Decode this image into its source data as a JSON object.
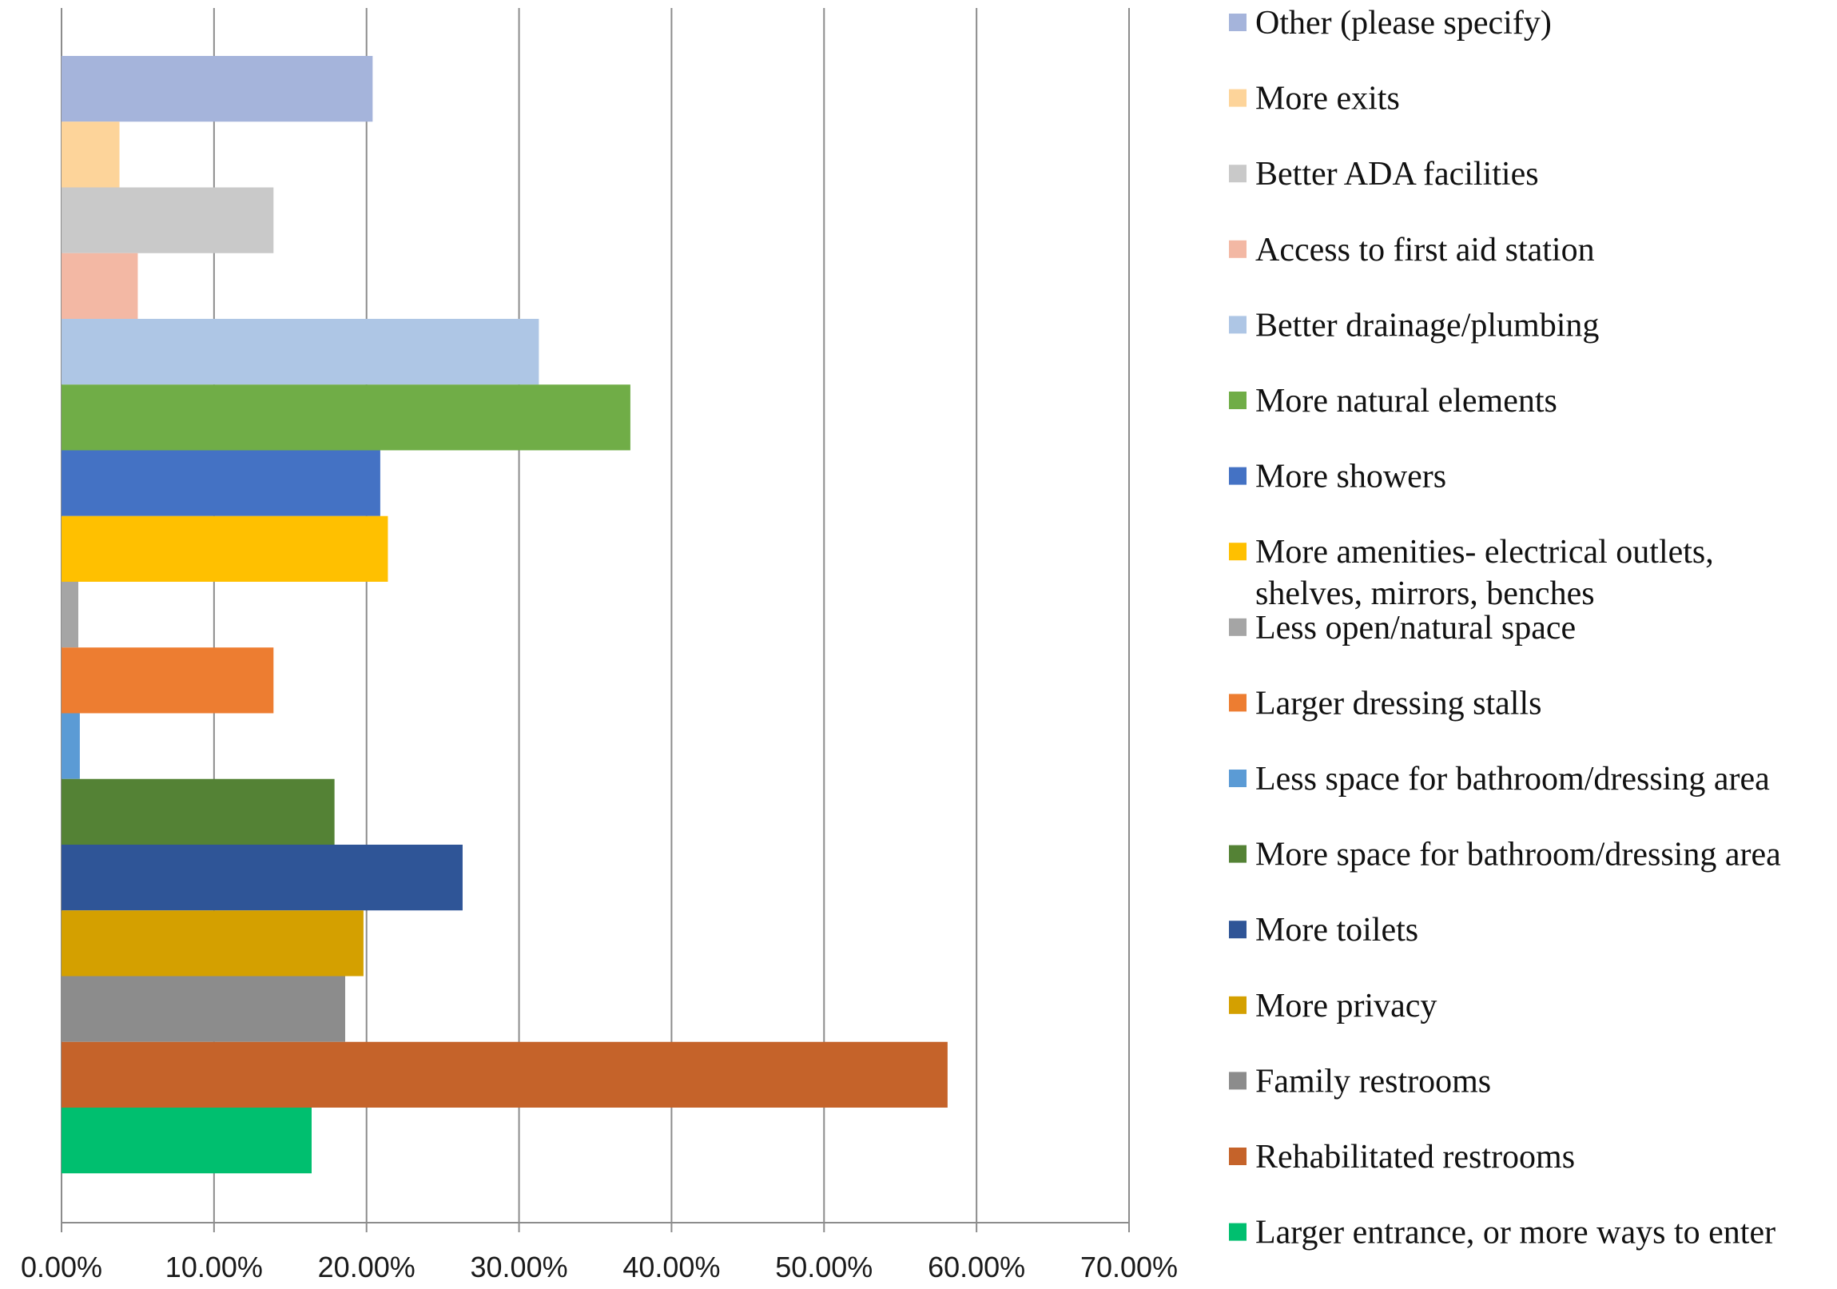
{
  "chart_data": {
    "type": "bar",
    "orientation": "horizontal",
    "title": "",
    "xlabel": "",
    "ylabel": "",
    "xlim": [
      0,
      70
    ],
    "x_ticks": [
      "0.00%",
      "10.00%",
      "20.00%",
      "30.00%",
      "40.00%",
      "50.00%",
      "60.00%",
      "70.00%"
    ],
    "grid": "vertical",
    "legend_position": "right",
    "series": [
      {
        "name": "Other (please specify)",
        "value": 20.4,
        "color": "#a5b4db"
      },
      {
        "name": "More exits",
        "value": 3.8,
        "color": "#fdd49a"
      },
      {
        "name": "Better ADA facilities",
        "value": 13.9,
        "color": "#c9c9c9"
      },
      {
        "name": "Access to first aid station",
        "value": 5.0,
        "color": "#f3b8a4"
      },
      {
        "name": "Better drainage/plumbing",
        "value": 31.3,
        "color": "#aec6e5"
      },
      {
        "name": "More natural elements",
        "value": 37.3,
        "color": "#70ad47"
      },
      {
        "name": "More showers",
        "value": 20.9,
        "color": "#4472c4"
      },
      {
        "name": "More amenities- electrical outlets, shelves, mirrors, benches",
        "label_lines": [
          "More amenities- electrical outlets,",
          "shelves, mirrors, benches"
        ],
        "value": 21.4,
        "color": "#ffc000"
      },
      {
        "name": "Less open/natural space",
        "value": 1.1,
        "color": "#a5a5a5"
      },
      {
        "name": "Larger dressing stalls",
        "value": 13.9,
        "color": "#ed7d31"
      },
      {
        "name": "Less space for bathroom/dressing area",
        "value": 1.2,
        "color": "#5b9bd5"
      },
      {
        "name": "More space for bathroom/dressing area",
        "value": 17.9,
        "color": "#548235"
      },
      {
        "name": "More toilets",
        "value": 26.3,
        "color": "#2f5597"
      },
      {
        "name": "More privacy",
        "value": 19.8,
        "color": "#d4a000"
      },
      {
        "name": "Family restrooms",
        "value": 18.6,
        "color": "#8c8c8c"
      },
      {
        "name": "Rehabilitated restrooms",
        "value": 58.1,
        "color": "#c5632a"
      },
      {
        "name": "Larger entrance, or more ways to enter",
        "value": 16.4,
        "color": "#00bf6f"
      }
    ]
  }
}
